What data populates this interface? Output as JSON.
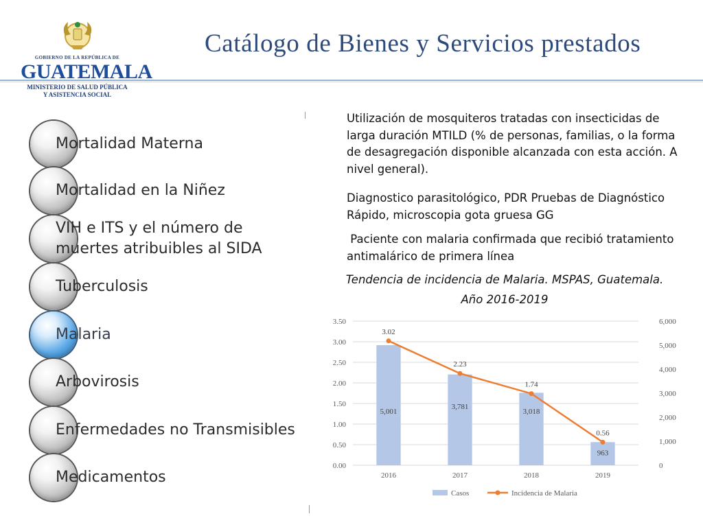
{
  "header": {
    "title": "Catálogo de Bienes y Servicios prestados",
    "logo": {
      "gov_text": "GOBIERNO DE LA REPÚBLICA DE",
      "country": "GUATEMALA",
      "ministry_line1": "MINISTERIO DE SALUD PÚBLICA",
      "ministry_line2": "Y ASISTENCIA SOCIAL"
    }
  },
  "menu": {
    "items": [
      {
        "label": "Mortalidad Materna",
        "active": false
      },
      {
        "label": "Mortalidad en la Niñez",
        "active": false
      },
      {
        "label": "VIH e ITS y el número de muertes atribuibles al SIDA",
        "line1": "VIH e ITS y el número de",
        "line2": "muertes atribuibles al SIDA",
        "active": false
      },
      {
        "label": "Tuberculosis",
        "active": false
      },
      {
        "label": "Malaria",
        "active": true
      },
      {
        "label": "Arbovirosis",
        "active": false
      },
      {
        "label": "Enfermedades no Transmisibles",
        "active": false
      },
      {
        "label": "Medicamentos",
        "active": false
      }
    ]
  },
  "content": {
    "paragraphs": [
      "Utilización de mosquiteros tratadas con insecticidas de larga duración MTILD (% de personas, familias, o la forma de desagregación disponible alcanzada con esta acción. A nivel general).",
      "Diagnostico parasitológico, PDR Pruebas de Diagnóstico Rápido, microscopia gota gruesa GG",
      " Paciente con malaria confirmada que recibió tratamiento antimalárico de primera línea"
    ]
  },
  "chart_data": {
    "type": "bar",
    "title": "Tendencia de incidencia de Malaria. MSPAS, Guatemala. Año 2016-2019",
    "title_line1": "Tendencia de incidencia de Malaria. MSPAS, Guatemala.",
    "title_line2": "Año 2016-2019",
    "categories": [
      "2016",
      "2017",
      "2018",
      "2019"
    ],
    "series": [
      {
        "name": "Casos",
        "kind": "bar",
        "axis": "right",
        "values": [
          5001,
          3781,
          3018,
          963
        ],
        "labels": [
          "5,001",
          "3,781",
          "3,018",
          "963"
        ],
        "color": "#b4c7e7"
      },
      {
        "name": "Incidencia de Malaria",
        "kind": "line",
        "axis": "left",
        "values": [
          3.02,
          2.23,
          1.74,
          0.56
        ],
        "labels": [
          "3.02",
          "2.23",
          "1.74",
          "0.56"
        ],
        "color": "#ed7d31"
      }
    ],
    "y_left": {
      "range": [
        0,
        3.5
      ],
      "ticks": [
        "0.00",
        "0.50",
        "1.00",
        "1.50",
        "2.00",
        "2.50",
        "3.00",
        "3.50"
      ]
    },
    "y_right": {
      "range": [
        0,
        6000
      ],
      "ticks": [
        "0",
        "1,000",
        "2,000",
        "3,000",
        "4,000",
        "5,000",
        "6,000"
      ]
    },
    "grid": true,
    "legend": "bottom"
  }
}
